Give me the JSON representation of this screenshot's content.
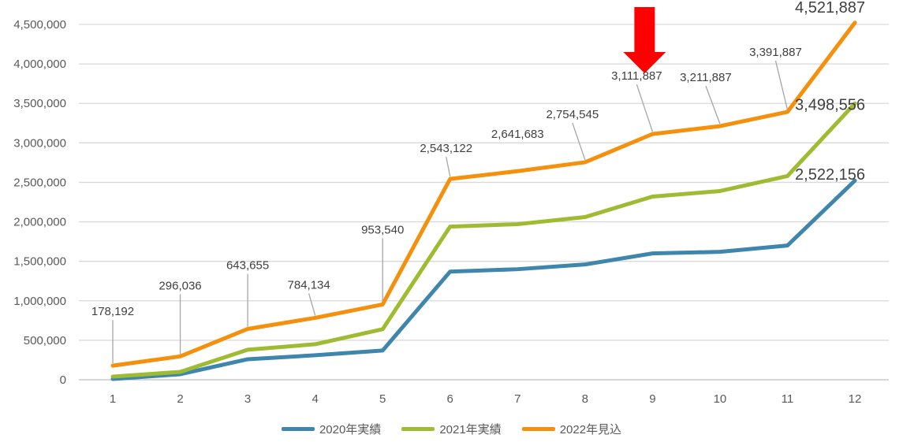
{
  "chart_data": {
    "type": "line",
    "categories": [
      "1",
      "2",
      "3",
      "4",
      "5",
      "6",
      "7",
      "8",
      "9",
      "10",
      "11",
      "12"
    ],
    "y_ticks": [
      "0",
      "500,000",
      "1,000,000",
      "1,500,000",
      "2,000,000",
      "2,500,000",
      "3,000,000",
      "3,500,000",
      "4,000,000",
      "4,500,000"
    ],
    "ylim": [
      0,
      4500000
    ],
    "grid": true,
    "legend_placement": "bottom",
    "series": [
      {
        "name": "2020年実績",
        "color": "#3f86ac",
        "values": [
          10000,
          70000,
          260000,
          310000,
          370000,
          1370000,
          1400000,
          1460000,
          1600000,
          1620000,
          1700000,
          2522156
        ],
        "labels": [
          "",
          "",
          "",
          "",
          "",
          "",
          "",
          "",
          "",
          "",
          "",
          "2,522,156"
        ]
      },
      {
        "name": "2021年実績",
        "color": "#9fbb32",
        "values": [
          40000,
          100000,
          380000,
          450000,
          640000,
          1940000,
          1970000,
          2060000,
          2320000,
          2390000,
          2580000,
          3498556
        ],
        "labels": [
          "",
          "",
          "",
          "",
          "",
          "",
          "",
          "",
          "",
          "",
          "",
          "3,498,556"
        ]
      },
      {
        "name": "2022年見込",
        "color": "#f4900c",
        "values": [
          178192,
          296036,
          643655,
          784134,
          953540,
          2543122,
          2641683,
          2754545,
          3111887,
          3211887,
          3391887,
          4521887
        ],
        "labels": [
          "178,192",
          "296,036",
          "643,655",
          "784,134",
          "953,540",
          "2,543,122",
          "2,641,683",
          "2,754,545",
          "3,111,887",
          "3,211,887",
          "3,391,887",
          "4,521,887"
        ]
      }
    ],
    "annotation": {
      "type": "arrow",
      "color": "#ff0000",
      "category": "9",
      "direction": "down"
    }
  }
}
